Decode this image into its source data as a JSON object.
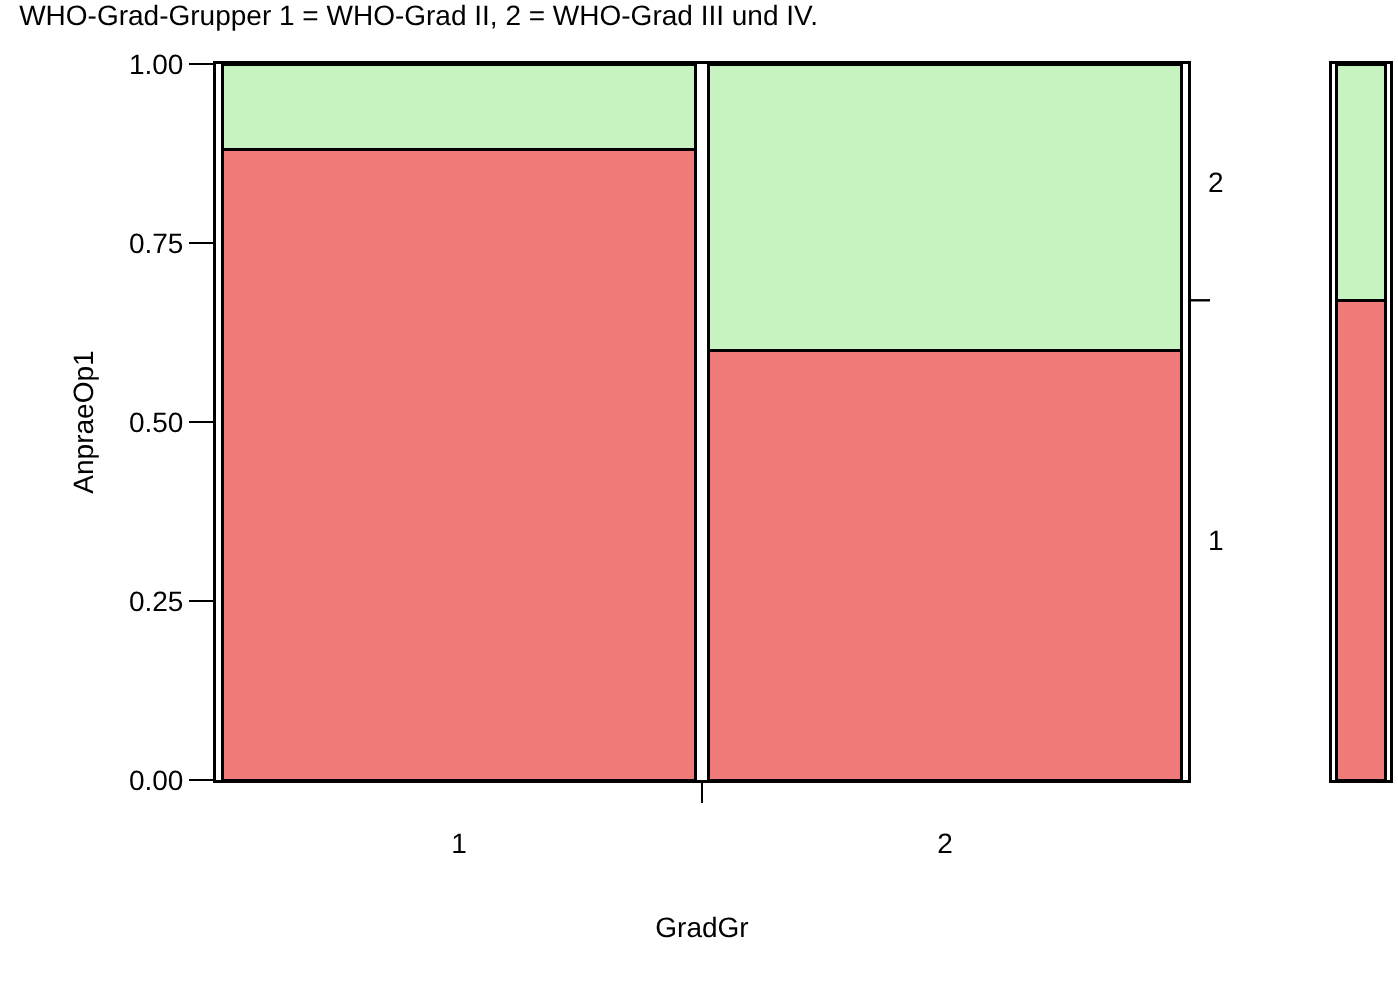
{
  "chart_data": [
    {
      "type": "bar",
      "title": "WHO-Grad-Grupper 1 = WHO-Grad II, 2 = WHO-Grad III und IV.",
      "xlabel": "GradGr",
      "ylabel": "AnpraeOp1",
      "categories": [
        "1",
        "2"
      ],
      "stacked": true,
      "series": [
        {
          "name": "1",
          "color": "#f07a7a",
          "values": [
            0.88,
            0.6
          ]
        },
        {
          "name": "2",
          "color": "#c6f3bf",
          "values": [
            0.12,
            0.4
          ]
        }
      ],
      "ylim": [
        0,
        1
      ],
      "yticks": [
        {
          "value": 0,
          "label": "0.00"
        },
        {
          "value": 0.25,
          "label": "0.25"
        },
        {
          "value": 0.5,
          "label": "0.50"
        },
        {
          "value": 0.75,
          "label": "0.75"
        },
        {
          "value": 1,
          "label": "1.00"
        }
      ],
      "grid": false
    },
    {
      "type": "bar",
      "categories": [
        null
      ],
      "stacked": true,
      "series": [
        {
          "color": "#f07a7a",
          "values": [
            0.67
          ]
        },
        {
          "color": "#c6f3bf",
          "values": [
            0.33
          ]
        }
      ],
      "ylim": [
        0,
        1
      ],
      "grid": false
    }
  ]
}
